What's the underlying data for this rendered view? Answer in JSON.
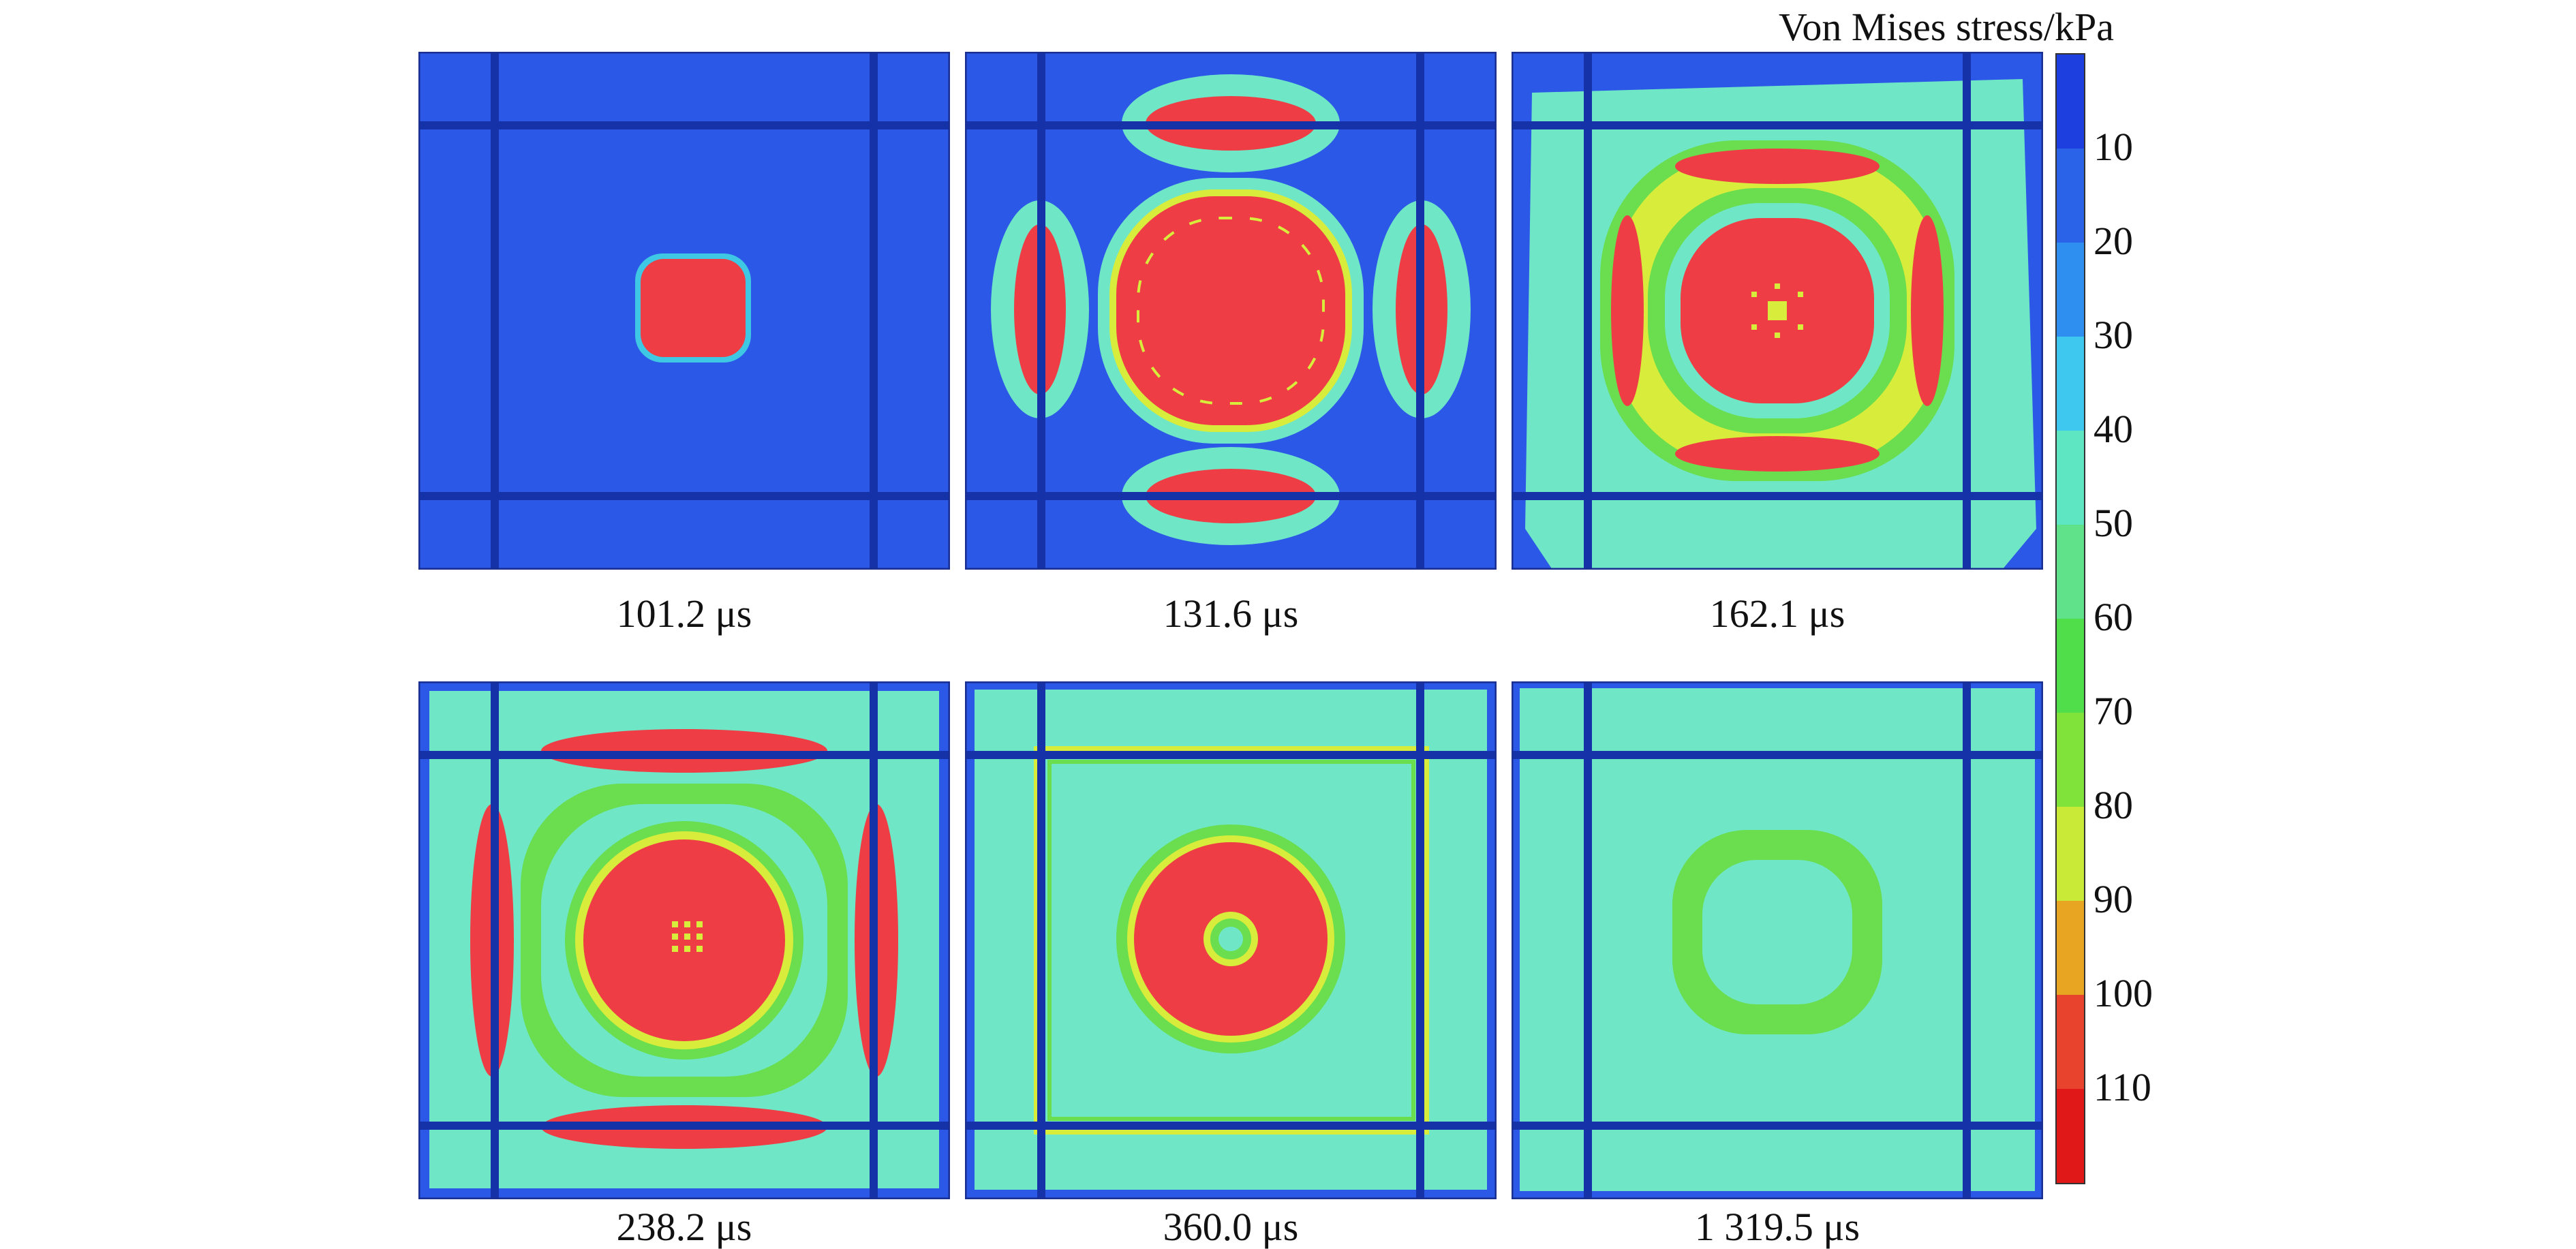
{
  "colorbar": {
    "title": "Von Mises stress/kPa",
    "ticks": [
      "10",
      "20",
      "30",
      "40",
      "50",
      "60",
      "70",
      "80",
      "90",
      "100",
      "110"
    ],
    "colors": [
      "#1d3fe0",
      "#2a63e8",
      "#2f8ff0",
      "#3ec8ef",
      "#5ee6c2",
      "#5fe28a",
      "#50df4a",
      "#7fe33a",
      "#c9ea36",
      "#e7a522",
      "#e8432c",
      "#e01818"
    ]
  },
  "palette": {
    "bg": "#2b58e6",
    "grid": "#1632a8",
    "cyan": "#49cde8",
    "teal": "#6fe6c6",
    "green": "#6ade4f",
    "yellow": "#d8ec3b",
    "red": "#ee3d44"
  },
  "panels": [
    {
      "time": "101.2 μs"
    },
    {
      "time": "131.6 μs"
    },
    {
      "time": "162.1 μs"
    },
    {
      "time": "238.2 μs"
    },
    {
      "time": "360.0 μs"
    },
    {
      "time": "1 319.5 μs"
    }
  ]
}
